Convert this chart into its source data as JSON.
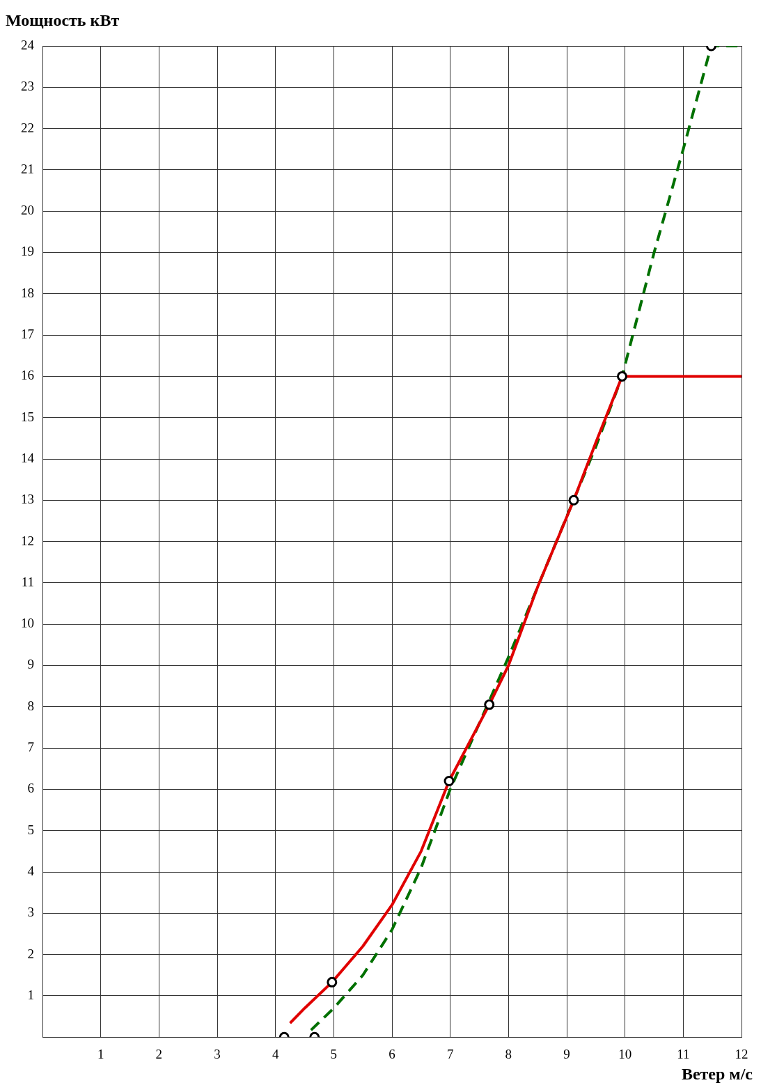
{
  "chart_data": {
    "type": "line",
    "xlabel": "Ветер м/с",
    "ylabel": "Мощность кВт",
    "xlim": [
      0,
      12
    ],
    "ylim": [
      0,
      24
    ],
    "xticks": [
      1,
      2,
      3,
      4,
      5,
      6,
      7,
      8,
      9,
      10,
      11,
      12
    ],
    "yticks": [
      1,
      2,
      3,
      4,
      5,
      6,
      7,
      8,
      9,
      10,
      11,
      12,
      13,
      14,
      15,
      16,
      17,
      18,
      19,
      20,
      21,
      22,
      23,
      24
    ],
    "grid": true,
    "legend": false,
    "series": [
      {
        "color": "#e00000",
        "line_style": "solid",
        "marker": "none",
        "x": [
          4.25,
          4.5,
          4.97,
          5.5,
          6.0,
          6.5,
          6.98,
          7.67,
          8.0,
          8.5,
          9.12,
          9.5,
          9.95,
          12
        ],
        "values": [
          0.34,
          0.7,
          1.33,
          2.2,
          3.2,
          4.5,
          6.2,
          8.05,
          9.0,
          10.9,
          13.0,
          14.4,
          16,
          16
        ]
      },
      {
        "color": "#007000",
        "line_style": "dashed",
        "marker": "none",
        "x": [
          4.61,
          5.0,
          5.5,
          6.0,
          6.5,
          7.0,
          7.5,
          8.0,
          8.5,
          9.0,
          9.5,
          9.95,
          10.5,
          11.0,
          11.48,
          12
        ],
        "values": [
          0.17,
          0.7,
          1.5,
          2.6,
          4.1,
          6.0,
          7.6,
          9.2,
          10.9,
          12.6,
          14.3,
          16,
          19,
          21.5,
          24,
          24
        ]
      },
      {
        "type": "scatter",
        "color": "#000000",
        "marker": "circle",
        "x": [
          4.15,
          4.67,
          4.97,
          6.98,
          7.67,
          9.12,
          9.95,
          11.48
        ],
        "values": [
          0,
          0,
          1.33,
          6.2,
          8.05,
          13,
          16,
          24
        ]
      }
    ]
  }
}
